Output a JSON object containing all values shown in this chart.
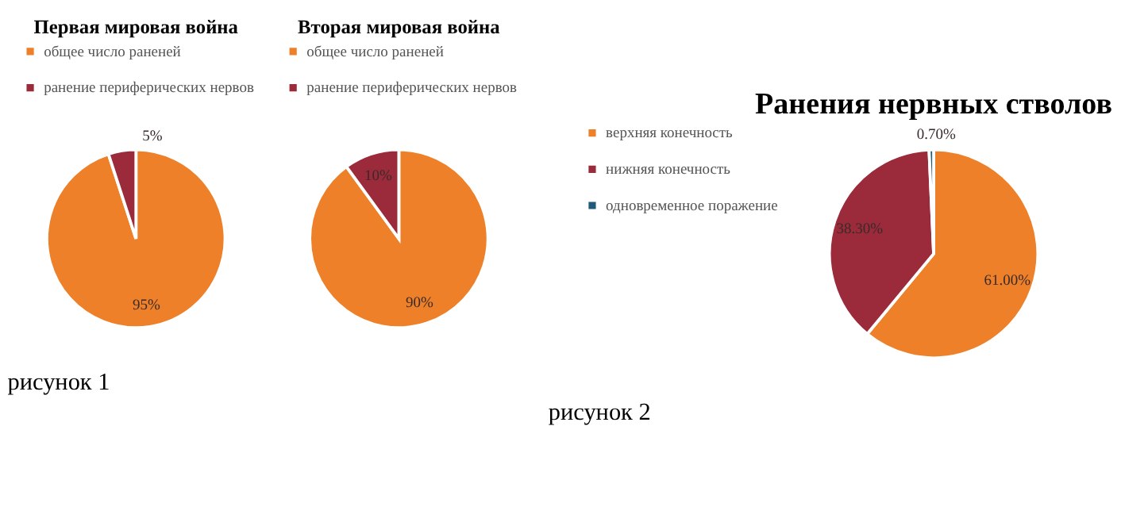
{
  "chart_data": [
    {
      "type": "pie",
      "title": "Первая мировая война",
      "categories": [
        "общее число раненей",
        "ранение периферических нервов"
      ],
      "values": [
        95,
        5
      ],
      "colors": [
        "#ed8028",
        "#9b2a3a"
      ],
      "value_labels": [
        "95%",
        "5%"
      ],
      "legend": "top",
      "annotations": [
        "рисунок 1"
      ]
    },
    {
      "type": "pie",
      "title": "Вторая мировая война",
      "categories": [
        "общее число раненей",
        "ранение периферических нервов"
      ],
      "values": [
        90,
        10
      ],
      "colors": [
        "#ed8028",
        "#9b2a3a"
      ],
      "value_labels": [
        "90%",
        "10%"
      ],
      "legend": "top"
    },
    {
      "type": "pie",
      "title": "Ранения нервных стволов",
      "categories": [
        "верхняя конечность",
        "нижняя конечность",
        "одновременное поражение"
      ],
      "values": [
        61.0,
        38.3,
        0.7
      ],
      "colors": [
        "#ed8028",
        "#9b2a3a",
        "#1f5a7a"
      ],
      "value_labels": [
        "61.00%",
        "38.30%",
        "0.70%"
      ],
      "legend": "left",
      "annotations": [
        "рисунок 2"
      ]
    }
  ]
}
